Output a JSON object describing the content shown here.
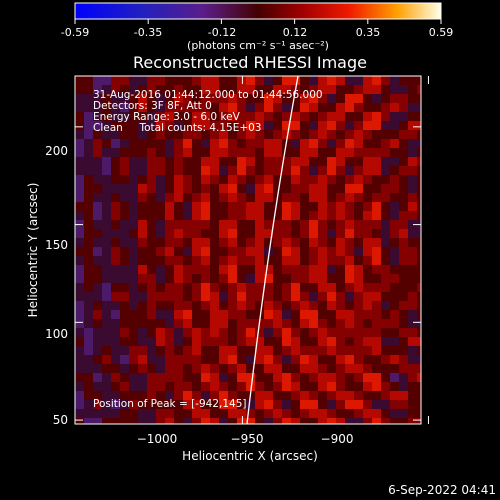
{
  "colorbar": {
    "ticks": [
      "-0.59",
      "-0.35",
      "-0.12",
      "0.12",
      "0.35",
      "0.59"
    ],
    "unit_label": "(photons cm⁻² s⁻¹ asec⁻²)",
    "range": [
      -0.59,
      0.59
    ]
  },
  "chart_data": {
    "type": "heatmap",
    "title": "Reconstructed RHESSI Image",
    "xlabel": "Heliocentric X (arcsec)",
    "ylabel": "Heliocentric Y (arcsec)",
    "xlim": [
      -1045,
      -952
    ],
    "ylim": [
      48,
      226
    ],
    "x_ticks": [
      {
        "value": -1000,
        "label": "−1000"
      },
      {
        "value": -950,
        "label": "−950"
      },
      {
        "value": -900,
        "label": "−900"
      }
    ],
    "y_ticks": [
      {
        "value": 50,
        "label": "50"
      },
      {
        "value": 100,
        "label": "100"
      },
      {
        "value": 150,
        "label": "150"
      },
      {
        "value": 200,
        "label": "200"
      }
    ],
    "info_lines": [
      "31-Aug-2016 01:44:12.000 to 01:44:56.000",
      "Detectors: 3F 8F, Att 0",
      "Energy Range: 3.0 - 6.0 keV",
      "Clean     Total counts: 4.15E+03"
    ],
    "peak_label": "Position of Peak = [-942,145]",
    "peak": {
      "x": -942,
      "y": 145
    },
    "grid": false,
    "limb_line": "white curve"
  },
  "footer": {
    "date": "6-Sep-2022 04:41"
  }
}
